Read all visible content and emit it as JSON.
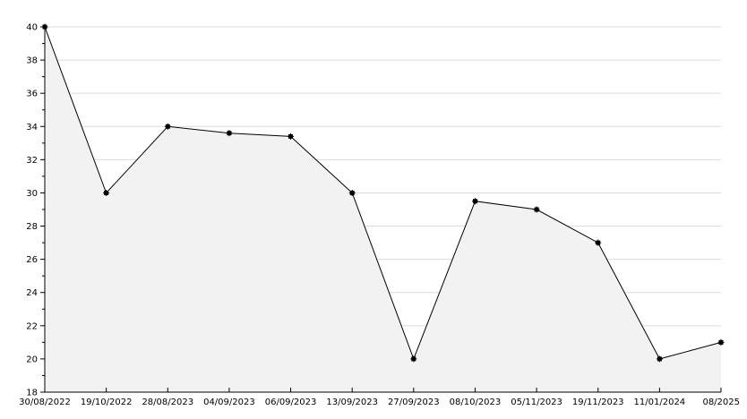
{
  "chart_data": {
    "type": "area",
    "title": "",
    "xlabel": "",
    "ylabel": "",
    "categories": [
      "30/08/2022",
      "19/10/2022",
      "28/08/2023",
      "04/09/2023",
      "06/09/2023",
      "13/09/2023",
      "27/09/2023",
      "08/10/2023",
      "05/11/2023",
      "19/11/2023",
      "11/01/2024",
      "08/2025"
    ],
    "series": [
      {
        "values": [
          40,
          30,
          34,
          33.6,
          33.4,
          30,
          20,
          29.5,
          29,
          27,
          20,
          21
        ]
      }
    ],
    "ylim": [
      18,
      40
    ],
    "yticks": [
      18,
      20,
      22,
      24,
      26,
      28,
      30,
      32,
      34,
      36,
      38,
      40
    ],
    "grid": true,
    "legend": "none",
    "colors": {
      "line": "#000000",
      "fill": "#f2f2f2",
      "grid": "#dcdcdc",
      "marker": "#000000"
    }
  }
}
